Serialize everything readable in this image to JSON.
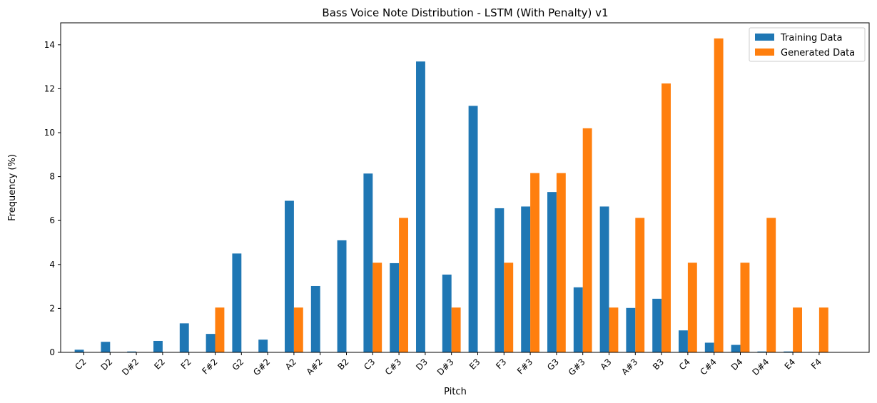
{
  "chart_data": {
    "type": "bar",
    "title": "Bass Voice Note Distribution - LSTM (With Penalty) v1",
    "xlabel": "Pitch",
    "ylabel": "Frequency (%)",
    "ylim": [
      0,
      15
    ],
    "yticks": [
      0,
      2,
      4,
      6,
      8,
      10,
      12,
      14
    ],
    "grid": false,
    "legend_position": "top-right",
    "categories": [
      "C2",
      "D2",
      "D#2",
      "E2",
      "F2",
      "F#2",
      "G2",
      "G#2",
      "A2",
      "A#2",
      "B2",
      "C3",
      "C#3",
      "D3",
      "D#3",
      "E3",
      "F3",
      "F#3",
      "G3",
      "G#3",
      "A3",
      "A#3",
      "B3",
      "C4",
      "C#4",
      "D4",
      "D#4",
      "E4",
      "F4"
    ],
    "series": [
      {
        "name": "Training Data",
        "color": "#1f77b4",
        "values": [
          0.12,
          0.48,
          0.04,
          0.52,
          1.32,
          0.84,
          4.5,
          0.58,
          6.9,
          3.02,
          5.1,
          8.14,
          4.06,
          13.24,
          3.54,
          11.22,
          6.56,
          6.64,
          7.3,
          2.96,
          6.64,
          2.02,
          2.44,
          1.0,
          0.44,
          0.34,
          0.04,
          0.04,
          0
        ]
      },
      {
        "name": "Generated Data",
        "color": "#ff7f0e",
        "values": [
          0,
          0,
          0,
          0,
          0,
          2.04,
          0,
          0,
          2.04,
          0,
          0,
          4.08,
          6.12,
          0,
          2.04,
          0,
          4.08,
          8.16,
          8.16,
          10.2,
          2.04,
          6.12,
          12.24,
          4.08,
          14.29,
          4.08,
          6.12,
          2.04,
          2.04
        ]
      }
    ]
  }
}
